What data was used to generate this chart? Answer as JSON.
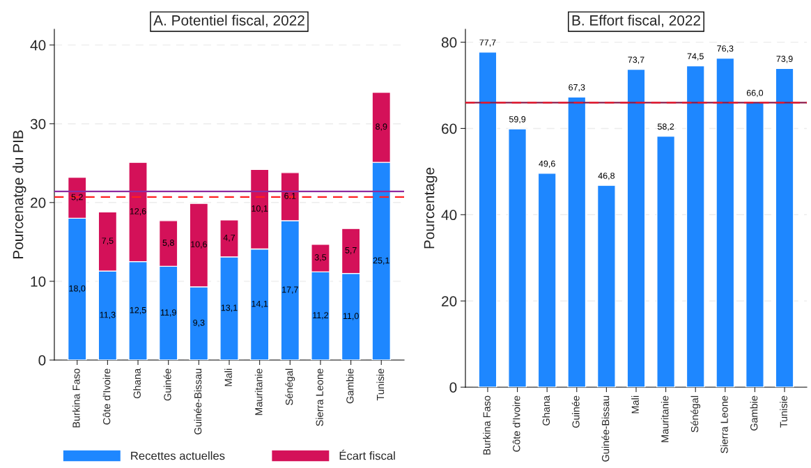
{
  "chart_data": [
    {
      "type": "bar",
      "title": "A. Potentiel fiscal, 2022",
      "ylabel": "Pourcenatge du PIB",
      "stacked": true,
      "categories": [
        "Burkina Faso",
        "Côte d'Ivoire",
        "Ghana",
        "Guinée",
        "Guinée-Bissau",
        "Mali",
        "Mauritanie",
        "Sénégal",
        "Sierra Leone",
        "Gambie",
        "Tunisie"
      ],
      "series": [
        {
          "name": "Recettes actuelles",
          "color": "#1e87ff",
          "values": [
            18.0,
            11.3,
            12.5,
            11.9,
            9.3,
            13.1,
            14.1,
            17.7,
            11.2,
            11.0,
            25.1
          ],
          "value_labels": [
            "18,0",
            "11,3",
            "12,5",
            "11,9",
            "9,3",
            "13,1",
            "14,1",
            "17,7",
            "11,2",
            "11,0",
            "25,1"
          ]
        },
        {
          "name": "Écart fiscal",
          "color": "#d41159",
          "values": [
            5.2,
            7.5,
            12.6,
            5.8,
            10.6,
            4.7,
            10.1,
            6.1,
            3.5,
            5.7,
            8.9
          ],
          "value_labels": [
            "5,2",
            "7,5",
            "12,6",
            "5,8",
            "10,6",
            "4,7",
            "10,1",
            "6.1",
            "3,5",
            "5,7",
            "8,9"
          ]
        }
      ],
      "ylim": [
        0,
        42
      ],
      "yticks": [
        0,
        10,
        20,
        30,
        40
      ],
      "grid": "y",
      "legend": "bottom",
      "ref_lines": [
        {
          "axis": "y",
          "value": 21.4,
          "color": "#8e2ba0",
          "line_style": "solid"
        },
        {
          "axis": "y",
          "value": 20.7,
          "color": "#ff2020",
          "line_style": "dashed"
        }
      ]
    },
    {
      "type": "bar",
      "title": "B. Effort fiscal, 2022",
      "ylabel": "Pourcentage",
      "categories": [
        "Burkina Faso",
        "Côte d'Ivoire",
        "Ghana",
        "Guinée",
        "Guinée-Bissau",
        "Mali",
        "Mauritanie",
        "Sénégal",
        "Sierra Leone",
        "Gambie",
        "Tunisie"
      ],
      "series": [
        {
          "color": "#1e87ff",
          "values": [
            77.7,
            59.9,
            49.6,
            67.3,
            46.8,
            73.7,
            58.2,
            74.5,
            76.3,
            66.0,
            73.9
          ],
          "value_labels": [
            "77,7",
            "59,9",
            "49,6",
            "67,3",
            "46,8",
            "73,7",
            "58,2",
            "74,5",
            "76,3",
            "66,0",
            "73,9"
          ]
        }
      ],
      "ylim": [
        0,
        83
      ],
      "yticks": [
        0,
        20,
        40,
        60,
        80
      ],
      "grid": "y",
      "ref_lines": [
        {
          "axis": "y",
          "value": 66.0,
          "color": "#8b1a4a",
          "line_style": "solid"
        },
        {
          "axis": "y",
          "value": 66.0,
          "color": "#e8192c",
          "line_style": "dashed"
        }
      ]
    }
  ]
}
